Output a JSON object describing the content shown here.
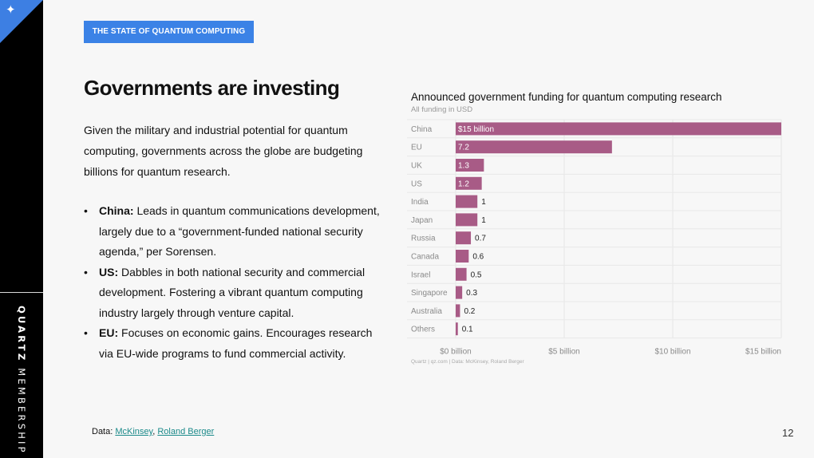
{
  "header": {
    "tag": "THE STATE OF QUANTUM COMPUTING",
    "title": "Governments are investing"
  },
  "intro": "Given the military and industrial potential for quantum computing, governments across the globe are budgeting billions for quantum research.",
  "bullets": [
    {
      "label": "China:",
      "text": " Leads in quantum communications development, largely due to a “government-funded national security agenda,” per Sorensen."
    },
    {
      "label": "US:",
      "text": " Dabbles in both national security and commercial development. Fostering a vibrant quantum computing industry largely through venture capital."
    },
    {
      "label": "EU:",
      "text": " Focuses on economic gains. Encourages research via EU-wide programs to fund commercial activity."
    }
  ],
  "source": {
    "prefix": "Data: ",
    "link1": "McKinsey",
    "sep": ", ",
    "link2": "Roland Berger"
  },
  "page_number": "12",
  "sidebar": {
    "brand_bold": "QUARTZ",
    "brand_rest": " MEMBERSHIP",
    "corner_icon": "sparkle-icon"
  },
  "colors": {
    "accent": "#3b82e6",
    "bar": "#a85b86",
    "sidebar": "#000000"
  },
  "chart_data": {
    "type": "bar",
    "orientation": "horizontal",
    "title": "Announced government funding for quantum computing research",
    "subtitle": "All funding in USD",
    "categories": [
      "China",
      "EU",
      "UK",
      "US",
      "India",
      "Japan",
      "Russia",
      "Canada",
      "Israel",
      "Singapore",
      "Australia",
      "Others"
    ],
    "values": [
      15,
      7.2,
      1.3,
      1.2,
      1,
      1,
      0.7,
      0.6,
      0.5,
      0.3,
      0.2,
      0.1
    ],
    "data_labels": [
      "$15 billion",
      "7.2",
      "1.3",
      "1.2",
      "1",
      "1",
      "0.7",
      "0.6",
      "0.5",
      "0.3",
      "0.2",
      "0.1"
    ],
    "xlim": [
      0,
      15
    ],
    "xticks": [
      0,
      5,
      10,
      15
    ],
    "xtick_labels": [
      "$0 billion",
      "$5 billion",
      "$10 billion",
      "$15 billion"
    ],
    "grid": true,
    "footnote": "Quartz | qz.com | Data: McKinsey, Roland Berger"
  }
}
